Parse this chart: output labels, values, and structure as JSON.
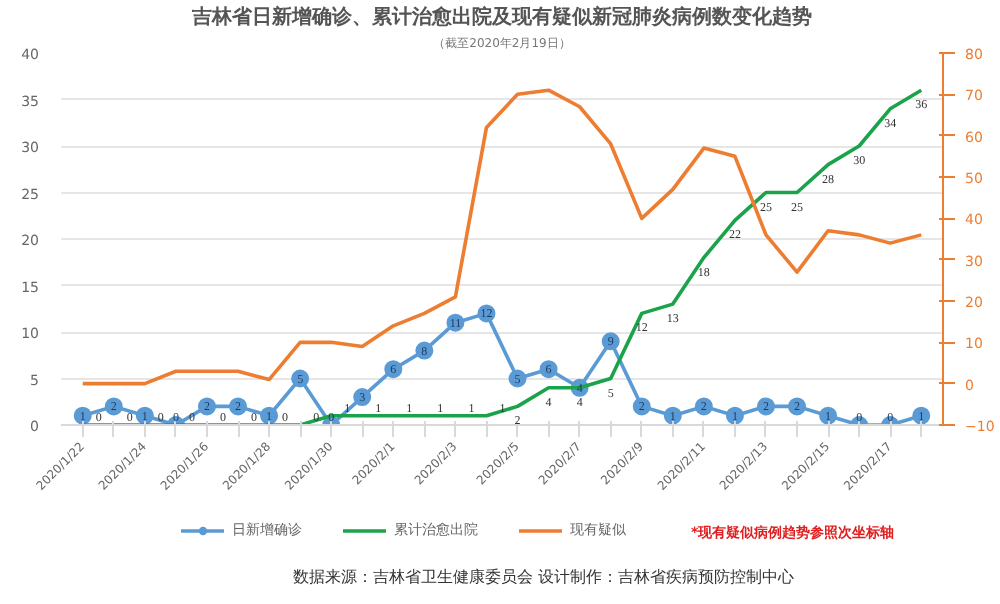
{
  "chart_data": {
    "type": "line",
    "title": "吉林省日新增确诊、累计治愈出院及现有疑似新冠肺炎病例数变化趋势",
    "subtitle": "（截至2020年2月19日）",
    "categories": [
      "2020/1/22",
      null,
      "2020/1/24",
      null,
      "2020/1/26",
      null,
      "2020/1/28",
      null,
      "2020/1/30",
      null,
      "2020/2/1",
      null,
      "2020/2/3",
      null,
      "2020/2/5",
      null,
      "2020/2/7",
      null,
      "2020/2/9",
      null,
      "2020/2/11",
      null,
      "2020/2/13",
      null,
      "2020/2/15",
      null,
      "2020/2/17",
      null
    ],
    "series": [
      {
        "name": "日新增确诊",
        "color": "#5b9bd5",
        "marker": "circle",
        "values": [
          1,
          2,
          1,
          0,
          2,
          2,
          1,
          5,
          0,
          3,
          6,
          8,
          11,
          12,
          5,
          6,
          4,
          9,
          2,
          1,
          2,
          1,
          2,
          2,
          1,
          0,
          0,
          1
        ],
        "value_labels": [
          "1",
          "2",
          "1",
          "0",
          "2",
          "2",
          "1",
          "5",
          "0",
          "3",
          "6",
          "8",
          "11",
          "12",
          "5",
          "6",
          "4",
          "9",
          "2",
          "1",
          "2",
          "1",
          "2",
          "2",
          "1",
          "0",
          "0",
          "1"
        ]
      },
      {
        "name": "累计治愈出院",
        "color": "#1aa34a",
        "marker": "none",
        "values": [
          0,
          0,
          0,
          0,
          0,
          0,
          0,
          0,
          1,
          1,
          1,
          1,
          1,
          1,
          2,
          4,
          4,
          5,
          12,
          13,
          18,
          22,
          25,
          25,
          28,
          30,
          34,
          36
        ],
        "value_labels": [
          "0",
          "0",
          "0",
          "0",
          "0",
          "0",
          "0",
          "0",
          "1",
          "1",
          "1",
          "1",
          "1",
          "1",
          "2",
          "4",
          "4",
          "5",
          "12",
          "13",
          "18",
          "22",
          "25",
          "25",
          "28",
          "30",
          "34",
          "36"
        ]
      },
      {
        "name": "现有疑似",
        "color": "#ed7d31",
        "marker": "none",
        "axis": "y2",
        "values": [
          0,
          0,
          0,
          3,
          3,
          3,
          1,
          10,
          10,
          9,
          14,
          17,
          21,
          62,
          70,
          71,
          67,
          58,
          40,
          47,
          57,
          55,
          36,
          27,
          37,
          36,
          34,
          36
        ]
      }
    ],
    "ylim": [
      0,
      40
    ],
    "yticks": [
      0,
      5,
      10,
      15,
      20,
      25,
      30,
      35,
      40
    ],
    "y2lim": [
      -10,
      80
    ],
    "y2ticks": [
      -10,
      0,
      10,
      20,
      30,
      40,
      50,
      60,
      70,
      80
    ],
    "grid": "y",
    "legend": "bottom",
    "line_style": "solid",
    "annotations": [
      "*现有疑似病例趋势参照次坐标轴",
      "数据来源：吉林省卫生健康委员会        设计制作：吉林省疾病预防控制中心"
    ]
  }
}
